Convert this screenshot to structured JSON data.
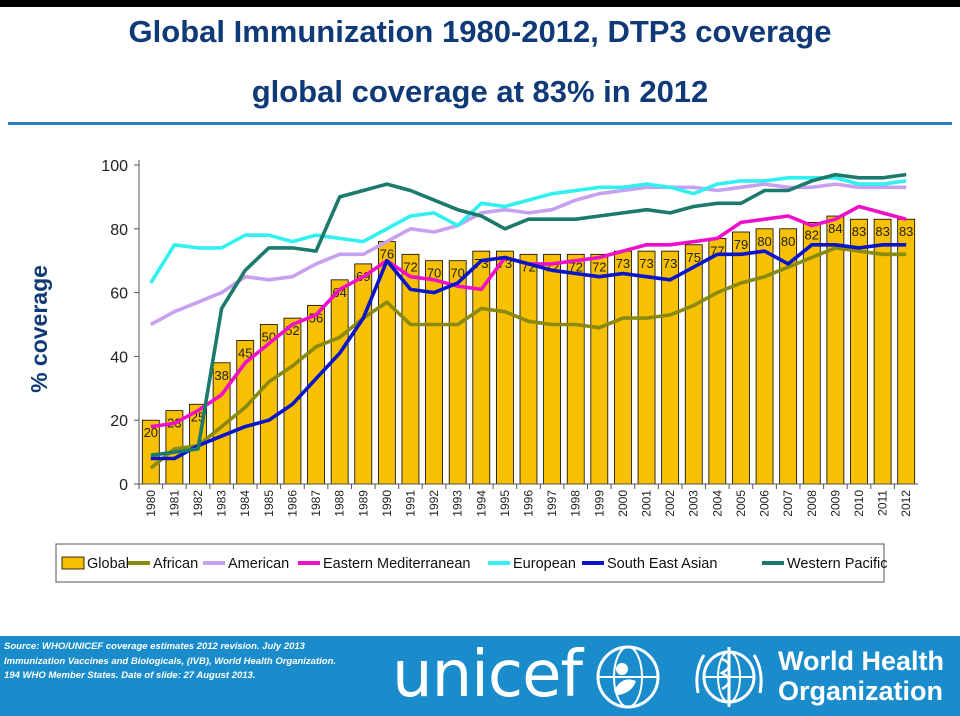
{
  "slide": {
    "title_line1": "Global Immunization 1980-2012, DTP3 coverage",
    "title_line2": "global coverage at 83% in 2012"
  },
  "chart_data": {
    "type": "bar",
    "xlabel": "",
    "ylabel": "% coverage",
    "ylim": [
      0,
      100
    ],
    "yticks": [
      0,
      20,
      40,
      60,
      80,
      100
    ],
    "grid": false,
    "legend_position": "bottom",
    "categories": [
      "1980",
      "1981",
      "1982",
      "1983",
      "1984",
      "1985",
      "1986",
      "1987",
      "1988",
      "1989",
      "1990",
      "1991",
      "1992",
      "1993",
      "1994",
      "1995",
      "1996",
      "1997",
      "1998",
      "1999",
      "2000",
      "2001",
      "2002",
      "2003",
      "2004",
      "2005",
      "2006",
      "2007",
      "2008",
      "2009",
      "2010",
      "2011",
      "2012"
    ],
    "bar_series": {
      "name": "Global",
      "color": "#f7c000",
      "values": [
        20,
        23,
        25,
        38,
        45,
        50,
        52,
        56,
        64,
        69,
        76,
        72,
        70,
        70,
        73,
        73,
        72,
        72,
        72,
        72,
        73,
        73,
        73,
        75,
        77,
        79,
        80,
        80,
        82,
        84,
        83,
        83,
        83
      ],
      "value_labels": [
        "20",
        "23",
        "25",
        "38",
        "45",
        "50",
        "52",
        "56",
        "64",
        "69",
        "76",
        "72",
        "70",
        "70",
        "73",
        "73",
        "72",
        "72",
        "72",
        "72",
        "73",
        "73",
        "73",
        "75",
        "77",
        "79",
        "80",
        "80",
        "82",
        "84",
        "83",
        "83",
        "83"
      ]
    },
    "line_series": [
      {
        "name": "African",
        "color": "#8a8a10",
        "values": [
          5,
          11,
          12,
          18,
          24,
          32,
          37,
          43,
          46,
          52,
          57,
          50,
          50,
          50,
          55,
          54,
          51,
          50,
          50,
          49,
          52,
          52,
          53,
          56,
          60,
          63,
          65,
          68,
          71,
          74,
          73,
          72,
          72
        ]
      },
      {
        "name": "American",
        "color": "#c8a0f0",
        "values": [
          50,
          54,
          57,
          60,
          65,
          64,
          65,
          69,
          72,
          72,
          76,
          80,
          79,
          81,
          85,
          86,
          85,
          86,
          89,
          91,
          92,
          93,
          93,
          93,
          92,
          93,
          94,
          93,
          93,
          94,
          93,
          93,
          93
        ]
      },
      {
        "name": "Eastern Mediterranean",
        "color": "#ee10c8",
        "values": [
          18,
          19,
          23,
          28,
          38,
          44,
          50,
          53,
          61,
          65,
          70,
          65,
          64,
          62,
          61,
          71,
          69,
          69,
          70,
          71,
          73,
          75,
          75,
          76,
          77,
          82,
          83,
          84,
          81,
          83,
          87,
          85,
          83
        ]
      },
      {
        "name": "European",
        "color": "#30f0f0",
        "values": [
          63,
          75,
          74,
          74,
          78,
          78,
          76,
          78,
          77,
          76,
          80,
          84,
          85,
          81,
          88,
          87,
          89,
          91,
          92,
          93,
          93,
          94,
          93,
          91,
          94,
          95,
          95,
          96,
          96,
          96,
          94,
          94,
          95
        ]
      },
      {
        "name": "South East Asian",
        "color": "#0a14c8",
        "values": [
          8,
          8,
          12,
          15,
          18,
          20,
          25,
          33,
          41,
          52,
          70,
          61,
          60,
          63,
          70,
          71,
          69,
          67,
          66,
          65,
          66,
          65,
          64,
          68,
          72,
          72,
          73,
          69,
          75,
          75,
          74,
          75,
          75
        ]
      },
      {
        "name": "Western Pacific",
        "color": "#1c7a6c",
        "values": [
          9,
          10,
          11,
          55,
          67,
          74,
          74,
          73,
          90,
          92,
          94,
          92,
          89,
          86,
          84,
          80,
          83,
          83,
          83,
          84,
          85,
          86,
          85,
          87,
          88,
          88,
          92,
          92,
          95,
          97,
          96,
          96,
          97
        ]
      }
    ]
  },
  "legend": {
    "items": [
      "Global",
      "African",
      "American",
      "Eastern Mediterranean",
      "European",
      "South East Asian",
      "Western Pacific"
    ]
  },
  "footer": {
    "source_line1": "Source: WHO/UNICEF coverage estimates 2012 revision. July 2013",
    "source_line2": "Immunization Vaccines and Biologicals, (IVB), World Health Organization.",
    "source_line3": "194 WHO Member States. Date of slide: 27 August 2013.",
    "unicef_logo_text": "unicef",
    "who_logo_line1": "World Health",
    "who_logo_line2": "Organization",
    "background_color": "#1a8ccb"
  }
}
